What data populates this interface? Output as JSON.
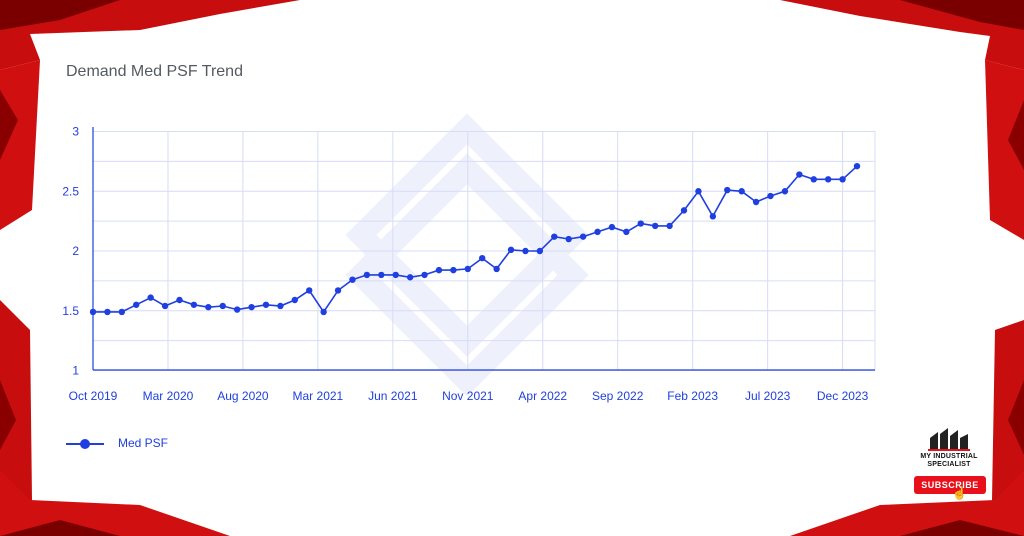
{
  "page": {
    "title": "Demand Med PSF Trend",
    "brand": {
      "line1": "MY INDUSTRIAL",
      "line2": "SPECIALIST",
      "subscribe_label": "SUBSCRIBE"
    }
  },
  "colors": {
    "series": "#1f3fe0",
    "grid": "#d7dcf7",
    "axis": "#1f3fe0",
    "frame_red": "#d40f0f",
    "frame_dark": "#7a0000"
  },
  "chart_data": {
    "type": "line",
    "title": "Demand Med PSF Trend",
    "xlabel": "",
    "ylabel": "",
    "ylim": [
      1,
      3
    ],
    "yticks": [
      1,
      1.5,
      2,
      2.5,
      3
    ],
    "xtick_labels": [
      "Oct 2019",
      "Mar 2020",
      "Aug 2020",
      "Mar 2021",
      "Jun 2021",
      "Nov 2021",
      "Apr 2022",
      "Sep 2022",
      "Feb 2023",
      "Jul 2023",
      "Dec 2023"
    ],
    "grid": true,
    "legend_position": "bottom-left",
    "series": [
      {
        "name": "Med PSF",
        "values": [
          1.49,
          1.49,
          1.49,
          1.55,
          1.61,
          1.54,
          1.59,
          1.55,
          1.53,
          1.54,
          1.51,
          1.53,
          1.55,
          1.54,
          1.59,
          1.67,
          1.49,
          1.67,
          1.76,
          1.8,
          1.8,
          1.8,
          1.78,
          1.8,
          1.84,
          1.84,
          1.85,
          1.94,
          1.85,
          2.01,
          2.0,
          2.0,
          2.12,
          2.1,
          2.12,
          2.16,
          2.2,
          2.16,
          2.23,
          2.21,
          2.21,
          2.34,
          2.5,
          2.29,
          2.51,
          2.5,
          2.41,
          2.46,
          2.5,
          2.64,
          2.6,
          2.6,
          2.6,
          2.71
        ]
      }
    ]
  }
}
